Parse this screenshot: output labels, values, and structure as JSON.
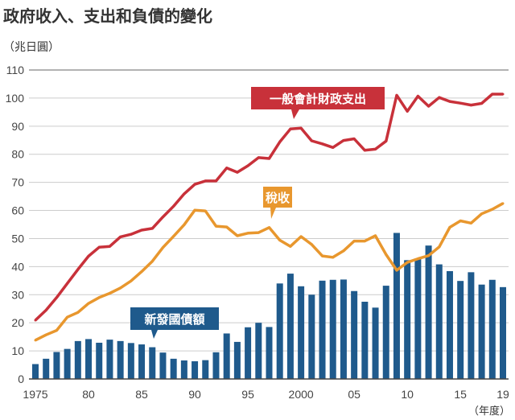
{
  "chart_data": {
    "type": "bar+line",
    "title": "政府收入、支出和負債的變化",
    "ylabel": "（兆日圓）",
    "xlabel": "（年度）",
    "ylim": [
      0,
      110
    ],
    "yticks": [
      0,
      10,
      20,
      30,
      40,
      50,
      60,
      70,
      80,
      90,
      100,
      110
    ],
    "grid": true,
    "x": [
      1975,
      1976,
      1977,
      1978,
      1979,
      1980,
      1981,
      1982,
      1983,
      1984,
      1985,
      1986,
      1987,
      1988,
      1989,
      1990,
      1991,
      1992,
      1993,
      1994,
      1995,
      1996,
      1997,
      1998,
      1999,
      2000,
      2001,
      2002,
      2003,
      2004,
      2005,
      2006,
      2007,
      2008,
      2009,
      2010,
      2011,
      2012,
      2013,
      2014,
      2015,
      2016,
      2017,
      2018,
      2019
    ],
    "xtick_labels": [
      {
        "year": 1975,
        "label": "1975"
      },
      {
        "year": 1980,
        "label": "80"
      },
      {
        "year": 1985,
        "label": "85"
      },
      {
        "year": 1990,
        "label": "90"
      },
      {
        "year": 1995,
        "label": "95"
      },
      {
        "year": 2000,
        "label": "2000"
      },
      {
        "year": 2005,
        "label": "05"
      },
      {
        "year": 2010,
        "label": "10"
      },
      {
        "year": 2015,
        "label": "15"
      },
      {
        "year": 2019,
        "label": "19"
      }
    ],
    "series": [
      {
        "name": "一般會計財政支出",
        "type": "line",
        "color": "#c8313a",
        "values": [
          20.9,
          24.5,
          29,
          34,
          39,
          43.7,
          46.9,
          47.2,
          50.6,
          51.5,
          53,
          53.6,
          57.7,
          61.5,
          65.9,
          69.3,
          70.5,
          70.5,
          75.1,
          73.6,
          75.9,
          78.8,
          78.5,
          84.4,
          89,
          89.3,
          84.8,
          83.7,
          82.4,
          84.9,
          85.5,
          81.4,
          81.8,
          84.7,
          101,
          95.3,
          100.7,
          97.1,
          100.2,
          98.8,
          98.2,
          97.5,
          98.1,
          101.4,
          101.4
        ]
      },
      {
        "name": "稅收",
        "type": "line",
        "color": "#e8972e",
        "values": [
          13.8,
          15.7,
          17.3,
          22,
          23.7,
          26.9,
          29,
          30.5,
          32.4,
          34.9,
          38.2,
          41.9,
          46.8,
          50.8,
          54.9,
          60.1,
          59.8,
          54.4,
          54.1,
          51,
          51.9,
          52.1,
          53.9,
          49.4,
          47.2,
          50.7,
          47.9,
          43.8,
          43.3,
          45.6,
          49.1,
          49.1,
          51,
          44.3,
          38.7,
          41.5,
          42.8,
          43.9,
          47,
          54,
          56.3,
          55.5,
          58.8,
          60.4,
          62.5
        ]
      },
      {
        "name": "新發國債額",
        "type": "bar",
        "color": "#1f5a8c",
        "values": [
          5.3,
          7.2,
          9.6,
          10.7,
          13.5,
          14.2,
          12.9,
          14,
          13.5,
          12.8,
          12.3,
          11.3,
          9.4,
          7.2,
          6.6,
          6.3,
          6.7,
          9.5,
          16.2,
          13.2,
          18.4,
          20,
          18.5,
          34,
          37.5,
          33,
          30,
          35,
          35.3,
          35.4,
          31.3,
          27.5,
          25.4,
          33.2,
          52,
          42.3,
          42.8,
          47.5,
          40.8,
          38.4,
          34.9,
          38,
          33.6,
          35.3,
          32.7
        ]
      }
    ]
  }
}
